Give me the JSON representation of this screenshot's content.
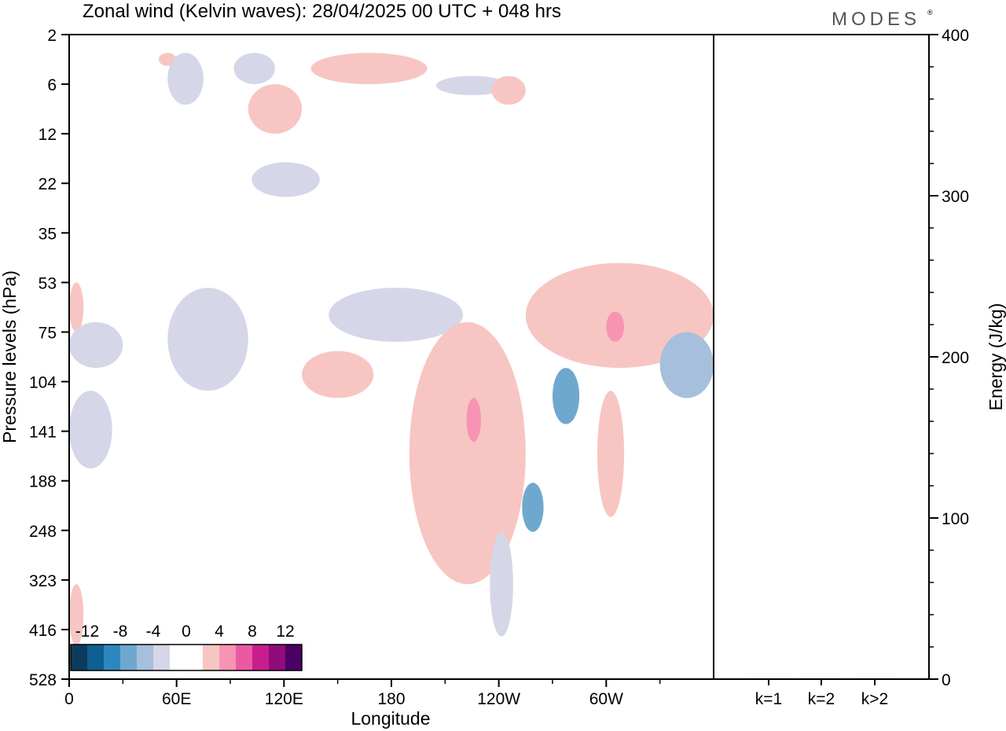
{
  "header": {
    "title": "Zonal wind (Kelvin waves):  28/04/2025  00 UTC  + 048 hrs",
    "logo_text": "MODES",
    "logo_mark": "®"
  },
  "chart_data": [
    {
      "type": "heatmap",
      "title": "Zonal wind (Kelvin waves):  28/04/2025  00 UTC  + 048 hrs",
      "xlabel": "Longitude",
      "ylabel": "Pressure levels (hPa)",
      "x_ticks": [
        "0",
        "60E",
        "120E",
        "180",
        "120W",
        "60W"
      ],
      "y_ticks": [
        "2",
        "6",
        "12",
        "22",
        "35",
        "53",
        "75",
        "104",
        "141",
        "188",
        "248",
        "323",
        "416",
        "528"
      ],
      "y_scale": "reversed, level index",
      "colorbar": {
        "labels": [
          "-12",
          "-8",
          "-4",
          "0",
          "4",
          "8",
          "12"
        ],
        "colors": [
          "#0d3b5e",
          "#0f5f94",
          "#2e86c1",
          "#6fa8cf",
          "#a6bfdc",
          "#d5d6e8",
          "#ffffff",
          "#ffffff",
          "#f7c6c2",
          "#f794b4",
          "#ea5aa3",
          "#c81e8c",
          "#8f0c7a",
          "#4b0066"
        ],
        "placement": "bottom-left"
      },
      "shaded_regions": [
        {
          "sign": "positive",
          "magnitude": 2,
          "lon": [
            0,
            8
          ],
          "pressure": [
            53,
            75
          ]
        },
        {
          "sign": "positive",
          "magnitude": 2,
          "lon": [
            50,
            60
          ],
          "pressure": [
            3,
            4
          ]
        },
        {
          "sign": "negative",
          "magnitude": 2,
          "lon": [
            55,
            75
          ],
          "pressure": [
            3,
            8
          ]
        },
        {
          "sign": "negative",
          "magnitude": 2,
          "lon": [
            92,
            115
          ],
          "pressure": [
            3,
            6
          ]
        },
        {
          "sign": "positive",
          "magnitude": 2,
          "lon": [
            100,
            130
          ],
          "pressure": [
            6,
            12
          ]
        },
        {
          "sign": "positive",
          "magnitude": 2,
          "lon": [
            135,
            200
          ],
          "pressure": [
            3,
            6
          ]
        },
        {
          "sign": "negative",
          "magnitude": 2,
          "lon": [
            205,
            245
          ],
          "pressure": [
            5,
            7
          ]
        },
        {
          "sign": "positive",
          "magnitude": 2,
          "lon": [
            236,
            255
          ],
          "pressure": [
            5,
            8
          ]
        },
        {
          "sign": "negative",
          "magnitude": 2,
          "lon": [
            102,
            140
          ],
          "pressure": [
            17,
            25
          ]
        },
        {
          "sign": "negative",
          "magnitude": 2,
          "lon": [
            0,
            30
          ],
          "pressure": [
            70,
            95
          ]
        },
        {
          "sign": "negative",
          "magnitude": 2,
          "lon": [
            55,
            100
          ],
          "pressure": [
            55,
            110
          ]
        },
        {
          "sign": "negative",
          "magnitude": 2,
          "lon": [
            145,
            220
          ],
          "pressure": [
            55,
            80
          ]
        },
        {
          "sign": "positive",
          "magnitude": 2,
          "lon": [
            130,
            170
          ],
          "pressure": [
            85,
            115
          ]
        },
        {
          "sign": "negative",
          "magnitude": 2,
          "lon": [
            0,
            24
          ],
          "pressure": [
            110,
            175
          ]
        },
        {
          "sign": "positive",
          "magnitude": 4,
          "lon": [
            190,
            255
          ],
          "pressure": [
            70,
            330
          ]
        },
        {
          "sign": "positive",
          "magnitude": 6,
          "lon": [
            222,
            230
          ],
          "pressure": [
            115,
            150
          ]
        },
        {
          "sign": "positive",
          "magnitude": 2,
          "lon": [
            255,
            360
          ],
          "pressure": [
            45,
            95
          ]
        },
        {
          "sign": "positive",
          "magnitude": 6,
          "lon": [
            300,
            310
          ],
          "pressure": [
            65,
            80
          ]
        },
        {
          "sign": "negative",
          "magnitude": 4,
          "lon": [
            330,
            360
          ],
          "pressure": [
            75,
            115
          ]
        },
        {
          "sign": "negative",
          "magnitude": 6,
          "lon": [
            270,
            285
          ],
          "pressure": [
            95,
            135
          ]
        },
        {
          "sign": "negative",
          "magnitude": 6,
          "lon": [
            253,
            265
          ],
          "pressure": [
            190,
            250
          ]
        },
        {
          "sign": "positive",
          "magnitude": 2,
          "lon": [
            295,
            310
          ],
          "pressure": [
            110,
            230
          ]
        },
        {
          "sign": "negative",
          "magnitude": 2,
          "lon": [
            235,
            248
          ],
          "pressure": [
            250,
            430
          ]
        },
        {
          "sign": "positive",
          "magnitude": 2,
          "lon": [
            0,
            8
          ],
          "pressure": [
            330,
            450
          ]
        }
      ]
    },
    {
      "type": "bar",
      "categories": [
        "k=1",
        "k=2",
        "k>2"
      ],
      "values": [
        0.5,
        0.5,
        0.5
      ],
      "ylabel": "Energy (J/kg)",
      "ylim": [
        0,
        400
      ],
      "y_ticks": [
        "0",
        "100",
        "200",
        "300",
        "400"
      ]
    }
  ]
}
